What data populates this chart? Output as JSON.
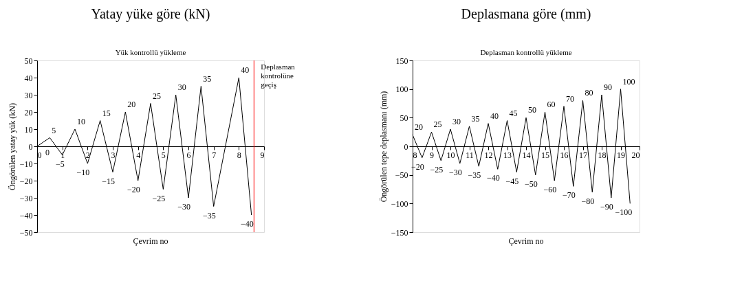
{
  "chart_data": [
    {
      "type": "line",
      "title": "Yatay yüke göre (kN)",
      "subtitle": "Yük kontrollü yükleme",
      "xlabel": "Çevrim no",
      "ylabel": "Öngörülen yatay yük (kN)",
      "x": [
        0,
        0.5,
        1,
        1.5,
        2,
        2.5,
        3,
        3.5,
        4,
        4.5,
        5,
        5.5,
        6,
        6.5,
        7,
        8,
        8.5
      ],
      "series": [
        {
          "color": "#000000",
          "values": [
            0,
            5,
            -5,
            10,
            -10,
            15,
            -15,
            20,
            -20,
            25,
            -25,
            30,
            -30,
            35,
            -35,
            40,
            -40
          ]
        }
      ],
      "xlim": [
        0,
        9
      ],
      "xticks": [
        0,
        1,
        2,
        3,
        4,
        5,
        6,
        7,
        8,
        9
      ],
      "ylim": [
        -50,
        50
      ],
      "yticks": [
        -50,
        -40,
        -30,
        -20,
        -10,
        0,
        10,
        20,
        30,
        40,
        50
      ],
      "ref_lines": [
        {
          "axis": "x",
          "value": 8.6,
          "label": "Deplasman kontrolüne geçiş",
          "color": "#ff0000"
        }
      ],
      "data_labels": true,
      "grid": false,
      "marker": "none",
      "line_style": "solid"
    },
    {
      "type": "line",
      "title": "Deplasmana göre (mm)",
      "subtitle": "Deplasman kontrollü yükleme",
      "xlabel": "Çevrim no",
      "ylabel": "Öngörülen tepe deplasmanı (mm)",
      "x": [
        8,
        8.5,
        9,
        9.5,
        10,
        10.5,
        11,
        11.5,
        12,
        12.5,
        13,
        13.5,
        14,
        14.5,
        15,
        15.5,
        16,
        16.5,
        17,
        17.5,
        18,
        18.5,
        19,
        19.5
      ],
      "series": [
        {
          "color": "#000000",
          "values": [
            20,
            -20,
            25,
            -25,
            30,
            -30,
            35,
            -35,
            40,
            -40,
            45,
            -45,
            50,
            -50,
            60,
            -60,
            70,
            -70,
            80,
            -80,
            90,
            -90,
            100,
            -100
          ]
        }
      ],
      "xlim": [
        8,
        20
      ],
      "xticks": [
        8,
        9,
        10,
        11,
        12,
        13,
        14,
        15,
        16,
        17,
        18,
        19,
        20
      ],
      "ylim": [
        -150,
        150
      ],
      "yticks": [
        -150,
        -100,
        -50,
        0,
        50,
        100,
        150
      ],
      "data_labels": true,
      "grid": false,
      "marker": "none",
      "line_style": "solid"
    }
  ]
}
